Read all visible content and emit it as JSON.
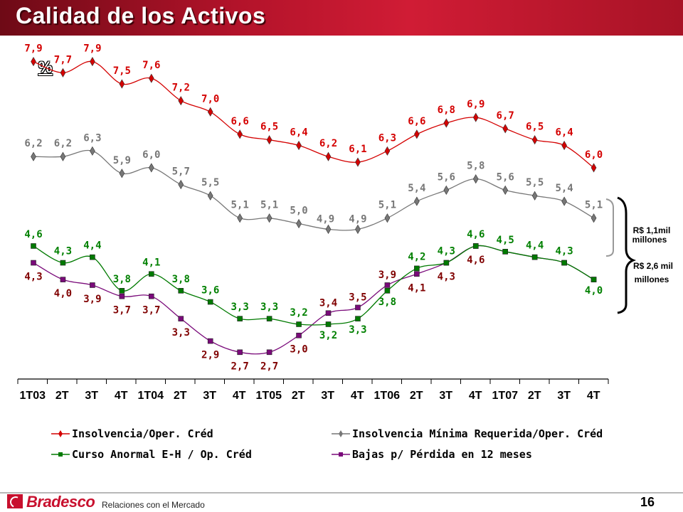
{
  "page": {
    "title": "Calidad de los Activos",
    "unit": "%",
    "footer_brand": "Bradesco",
    "footer_text": "Relaciones con el Mercado",
    "page_number": "16"
  },
  "chart_data": {
    "type": "line",
    "categories": [
      "1T03",
      "2T",
      "3T",
      "4T",
      "1T04",
      "2T",
      "3T",
      "4T",
      "1T05",
      "2T",
      "3T",
      "4T",
      "1T06",
      "2T",
      "3T",
      "4T",
      "1T07",
      "2T",
      "3T",
      "4T"
    ],
    "series": [
      {
        "name": "Insolvencia/Oper. Créd",
        "color": "#d40000",
        "label_color": "#d40000",
        "marker": "diamond",
        "values": [
          7.9,
          7.7,
          7.9,
          7.5,
          7.6,
          7.2,
          7.0,
          6.6,
          6.5,
          6.4,
          6.2,
          6.1,
          6.3,
          6.6,
          6.8,
          6.9,
          6.7,
          6.5,
          6.4,
          6.0
        ],
        "labels": [
          "7,9",
          "7,7",
          "7,9",
          "7,5",
          "7,6",
          "7,2",
          "7,0",
          "6,6",
          "6,5",
          "6,4",
          "6,2",
          "6,1",
          "6,3",
          "6,6",
          "6,8",
          "6,9",
          "6,7",
          "6,5",
          "6,4",
          "6,0"
        ]
      },
      {
        "name": "Insolvencia Mínima Requerida/Oper. Créd",
        "color": "#777777",
        "label_color": "#777777",
        "marker": "diamond",
        "values": [
          6.2,
          6.2,
          6.3,
          5.9,
          6.0,
          5.7,
          5.5,
          5.1,
          5.1,
          5.0,
          4.9,
          4.9,
          5.1,
          5.4,
          5.6,
          5.8,
          5.6,
          5.5,
          5.4,
          5.1
        ],
        "labels": [
          "6,2",
          "6,2",
          "6,3",
          "5,9",
          "6,0",
          "5,7",
          "5,5",
          "5,1",
          "5,1",
          "5,0",
          "4,9",
          "4,9",
          "5,1",
          "5,4",
          "5,6",
          "5,8",
          "5,6",
          "5,5",
          "5,4",
          "5,1"
        ]
      },
      {
        "name": "Curso Anormal E-H / Op. Créd",
        "color": "#007a00",
        "label_color": "#008000",
        "marker": "square",
        "values": [
          4.6,
          4.3,
          4.4,
          3.8,
          4.1,
          3.8,
          3.6,
          3.3,
          3.3,
          3.2,
          3.2,
          3.3,
          3.8,
          4.2,
          4.3,
          4.6,
          4.5,
          4.4,
          4.3,
          4.0
        ],
        "labels": [
          "4,6",
          "4,3",
          "4,4",
          "3,8",
          "4,1",
          "3,8",
          "3,6",
          "3,3",
          "3,3",
          "3,2",
          "3,2",
          "3,3",
          "3,8",
          "4,2",
          "4,3",
          "4,6",
          "4,5",
          "4,4",
          "4,3",
          "4,0"
        ]
      },
      {
        "name": "Bajas p/ Pérdida en 12 meses",
        "color": "#7a0a7a",
        "label_color": "#800000",
        "marker": "square",
        "values": [
          4.3,
          4.0,
          3.9,
          3.7,
          3.7,
          3.3,
          2.9,
          2.7,
          2.7,
          3.0,
          3.4,
          3.5,
          3.9,
          4.1,
          4.3,
          4.6,
          4.5,
          4.4,
          4.3,
          4.0
        ],
        "labels": [
          "4,3",
          "4,0",
          "3,9",
          "3,7",
          "3,7",
          "3,3",
          "2,9",
          "2,7",
          "2,7",
          "3,0",
          "3,4",
          "3,5",
          "3,9",
          "4,1",
          "4,3",
          "4,6",
          null,
          null,
          null,
          null
        ]
      }
    ],
    "annotations": [
      {
        "text_lines": [
          "R$ 1,1mil",
          "millones"
        ]
      },
      {
        "text_lines": [
          "R$ 2,6 mil",
          "millones"
        ]
      }
    ],
    "legend_position": "bottom",
    "grid": false
  }
}
